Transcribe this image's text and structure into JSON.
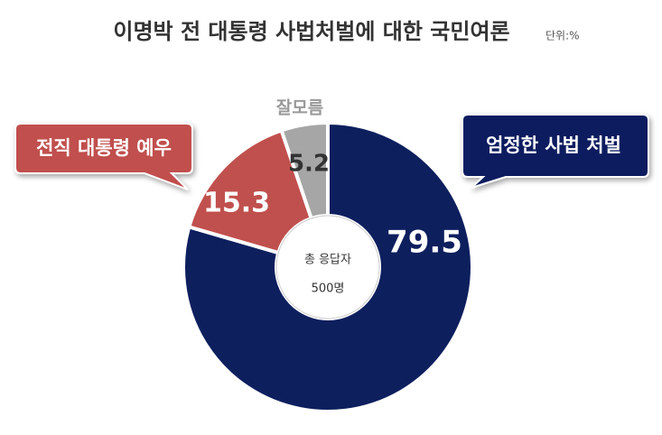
{
  "chart_data": {
    "type": "pie",
    "donut": true,
    "title": "이명박 전 대통령 사법처벌에 대한 국민여론",
    "unit": "단위:%",
    "categories": [
      "엄정한 사법 처벌",
      "전직 대통령 예우",
      "잘모름"
    ],
    "values": [
      79.5,
      15.3,
      5.2
    ],
    "colors": [
      "#0e1f5e",
      "#c0504d",
      "#a6a6a6"
    ],
    "center_text": [
      "총 응답자",
      "500명"
    ]
  }
}
